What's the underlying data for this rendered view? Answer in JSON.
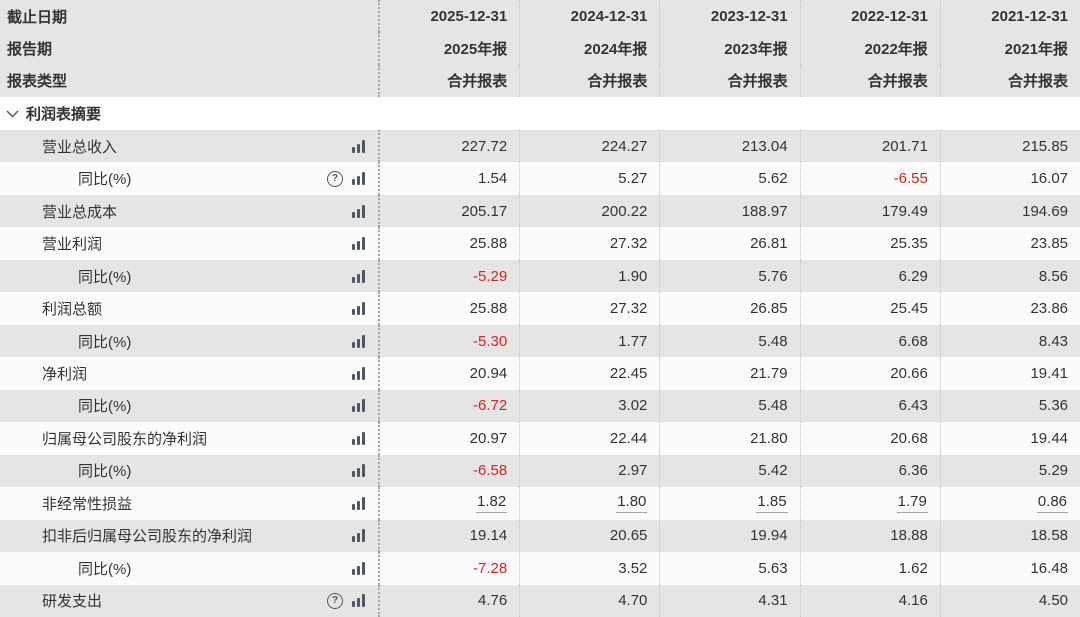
{
  "header": {
    "row_labels": [
      "截止日期",
      "报告期",
      "报表类型"
    ],
    "columns": [
      {
        "date": "2025-12-31",
        "period": "2025年报",
        "type": "合并报表"
      },
      {
        "date": "2024-12-31",
        "period": "2024年报",
        "type": "合并报表"
      },
      {
        "date": "2023-12-31",
        "period": "2023年报",
        "type": "合并报表"
      },
      {
        "date": "2022-12-31",
        "period": "2022年报",
        "type": "合并报表"
      },
      {
        "date": "2021-12-31",
        "period": "2021年报",
        "type": "合并报表"
      }
    ]
  },
  "section": {
    "title": "利润表摘要",
    "collapse_icon": "chevron-down"
  },
  "rows": [
    {
      "label": "营业总收入",
      "indent": 1,
      "help": false,
      "bar": true,
      "underline": false,
      "values": [
        "227.72",
        "224.27",
        "213.04",
        "201.71",
        "215.85"
      ]
    },
    {
      "label": "同比(%)",
      "indent": 2,
      "help": true,
      "bar": true,
      "underline": false,
      "values": [
        "1.54",
        "5.27",
        "5.62",
        "-6.55",
        "16.07"
      ]
    },
    {
      "label": "营业总成本",
      "indent": 1,
      "help": false,
      "bar": true,
      "underline": false,
      "values": [
        "205.17",
        "200.22",
        "188.97",
        "179.49",
        "194.69"
      ]
    },
    {
      "label": "营业利润",
      "indent": 1,
      "help": false,
      "bar": true,
      "underline": false,
      "values": [
        "25.88",
        "27.32",
        "26.81",
        "25.35",
        "23.85"
      ]
    },
    {
      "label": "同比(%)",
      "indent": 2,
      "help": false,
      "bar": true,
      "underline": false,
      "values": [
        "-5.29",
        "1.90",
        "5.76",
        "6.29",
        "8.56"
      ]
    },
    {
      "label": "利润总额",
      "indent": 1,
      "help": false,
      "bar": true,
      "underline": false,
      "values": [
        "25.88",
        "27.32",
        "26.85",
        "25.45",
        "23.86"
      ]
    },
    {
      "label": "同比(%)",
      "indent": 2,
      "help": false,
      "bar": true,
      "underline": false,
      "values": [
        "-5.30",
        "1.77",
        "5.48",
        "6.68",
        "8.43"
      ]
    },
    {
      "label": "净利润",
      "indent": 1,
      "help": false,
      "bar": true,
      "underline": false,
      "values": [
        "20.94",
        "22.45",
        "21.79",
        "20.66",
        "19.41"
      ]
    },
    {
      "label": "同比(%)",
      "indent": 2,
      "help": false,
      "bar": true,
      "underline": false,
      "values": [
        "-6.72",
        "3.02",
        "5.48",
        "6.43",
        "5.36"
      ]
    },
    {
      "label": "归属母公司股东的净利润",
      "indent": 1,
      "help": false,
      "bar": true,
      "underline": false,
      "values": [
        "20.97",
        "22.44",
        "21.80",
        "20.68",
        "19.44"
      ]
    },
    {
      "label": "同比(%)",
      "indent": 2,
      "help": false,
      "bar": true,
      "underline": false,
      "values": [
        "-6.58",
        "2.97",
        "5.42",
        "6.36",
        "5.29"
      ]
    },
    {
      "label": "非经常性损益",
      "indent": 1,
      "help": false,
      "bar": true,
      "underline": true,
      "values": [
        "1.82",
        "1.80",
        "1.85",
        "1.79",
        "0.86"
      ]
    },
    {
      "label": "扣非后归属母公司股东的净利润",
      "indent": 1,
      "help": false,
      "bar": true,
      "underline": false,
      "values": [
        "19.14",
        "20.65",
        "19.94",
        "18.88",
        "18.58"
      ]
    },
    {
      "label": "同比(%)",
      "indent": 2,
      "help": false,
      "bar": true,
      "underline": false,
      "values": [
        "-7.28",
        "3.52",
        "5.63",
        "1.62",
        "16.48"
      ]
    },
    {
      "label": "研发支出",
      "indent": 1,
      "help": true,
      "bar": true,
      "underline": false,
      "values": [
        "4.76",
        "4.70",
        "4.31",
        "4.16",
        "4.50"
      ]
    }
  ],
  "icons": {
    "bar_chart": "bar-chart-icon",
    "help": "question-mark-icon",
    "section_chevron": "chevron-down-icon",
    "help_glyph": "?"
  },
  "colors": {
    "header_bg": "#e5e5e5",
    "row_alt_bg": "#e5e5e5",
    "row_bg": "#fcfcfc",
    "section_bg": "#ffffff",
    "text": "#333333",
    "negative": "#d9231f",
    "icon": "#4d5866",
    "divider": "#c6c6c6",
    "divider_main": "#a6a6a6",
    "underline": "#a2a2a2"
  }
}
